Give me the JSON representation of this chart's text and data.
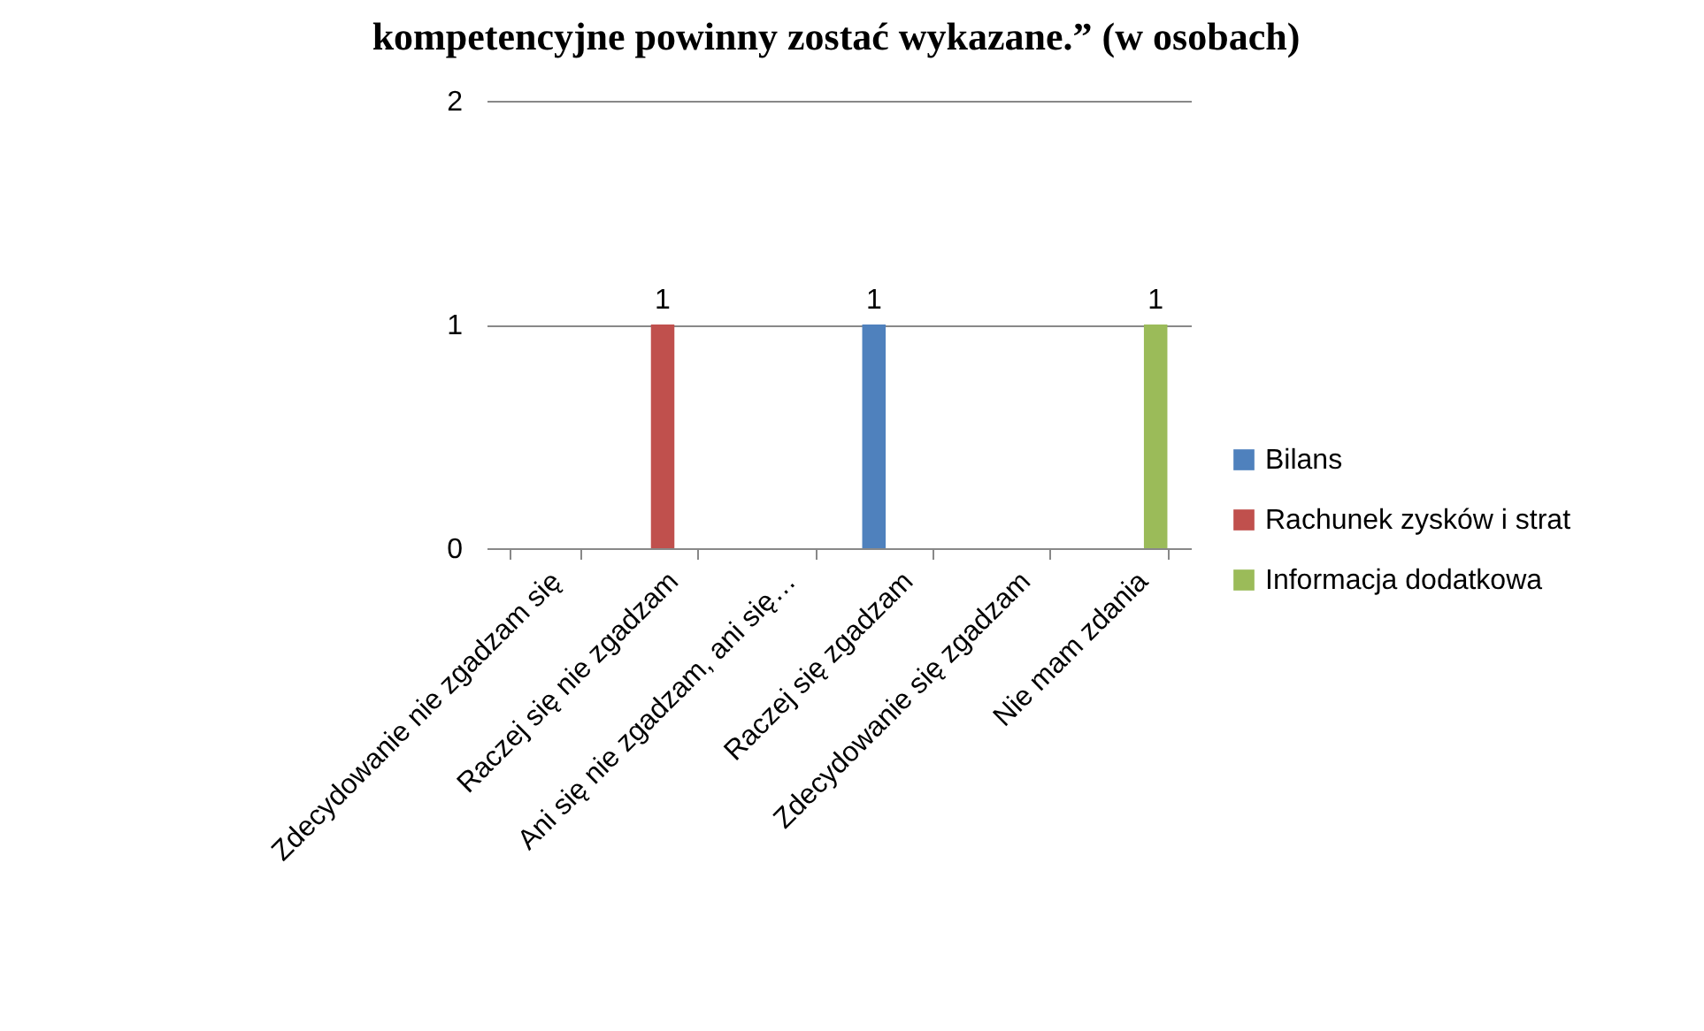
{
  "chart_data": {
    "type": "bar",
    "title": "kompetencyjne powinny zostać wykazane.” (w osobach)",
    "categories": [
      "Zdecydowanie nie zgadzam się",
      "Raczej się nie zgadzam",
      "Ani się nie zgadzam, ani się…",
      "Raczej się zgadzam",
      "Zdecydowanie się zgadzam",
      "Nie mam zdania"
    ],
    "series": [
      {
        "name": "Bilans",
        "color": "#4f81bd",
        "values": [
          null,
          null,
          null,
          1,
          null,
          null
        ]
      },
      {
        "name": "Rachunek zysków i strat",
        "color": "#c0504d",
        "values": [
          null,
          1,
          null,
          null,
          null,
          null
        ]
      },
      {
        "name": "Informacja dodatkowa",
        "color": "#9bbb59",
        "values": [
          null,
          null,
          null,
          null,
          null,
          1
        ]
      }
    ],
    "ylim": [
      0,
      2
    ],
    "yticks": [
      0,
      1,
      2
    ],
    "grid": "y",
    "legend": "right",
    "data_labels": true
  }
}
